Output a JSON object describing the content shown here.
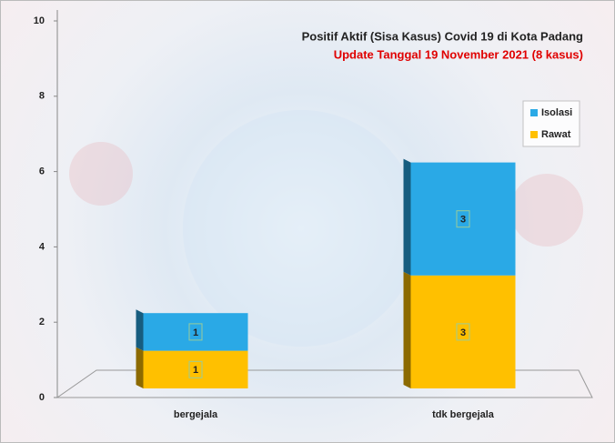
{
  "chart_data": {
    "type": "stacked-bar",
    "title": "Positif Aktif  (Sisa Kasus) Covid 19 di Kota Padang",
    "subtitle": "Update Tanggal  19 November 2021 (8 kasus)",
    "categories": [
      "bergejala",
      "tdk bergejala"
    ],
    "series": [
      {
        "name": "Rawat",
        "color": "#ffc000",
        "values": [
          1,
          3
        ]
      },
      {
        "name": "Isolasi",
        "color": "#2aa9e6",
        "values": [
          1,
          3
        ]
      }
    ],
    "ylim": [
      0,
      10
    ],
    "yticks": [
      0,
      2,
      4,
      6,
      8,
      10
    ],
    "legend": "top-right"
  }
}
